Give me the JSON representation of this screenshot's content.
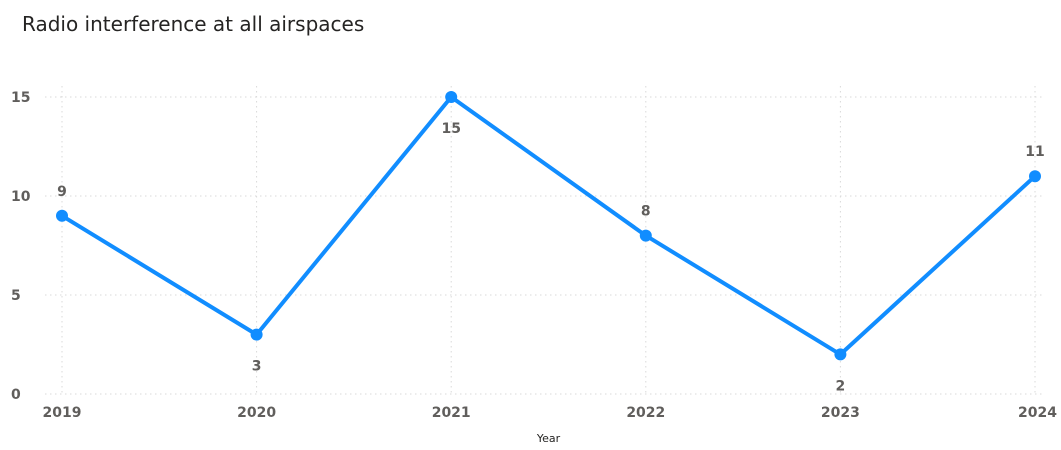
{
  "chart_data": {
    "type": "line",
    "title": "Radio interference at all airspaces",
    "xlabel": "Year",
    "ylabel": "",
    "categories": [
      "2019",
      "2020",
      "2021",
      "2022",
      "2023",
      "2024"
    ],
    "series": [
      {
        "values": [
          9,
          3,
          15,
          8,
          2,
          11
        ],
        "color": "#118dff"
      }
    ],
    "ylim": [
      0,
      15
    ],
    "yticks": [
      0,
      5,
      10,
      15
    ],
    "grid": true,
    "data_labels": true,
    "legend": "none"
  }
}
